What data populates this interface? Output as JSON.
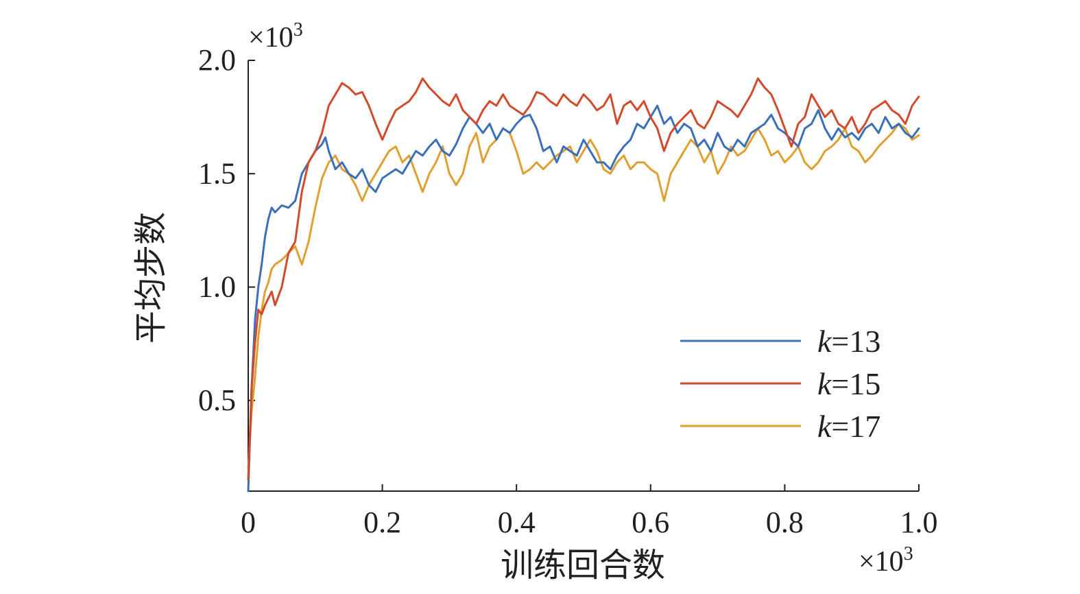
{
  "chart_data": {
    "type": "line",
    "xlabel": "训练回合数",
    "ylabel": "平均步数",
    "x_multiplier": "×10",
    "x_multiplier_exp": "3",
    "y_multiplier": "×10",
    "y_multiplier_exp": "3",
    "xlim": [
      0,
      1.0
    ],
    "ylim": [
      0.1,
      2.0
    ],
    "x_ticks": [
      0,
      0.2,
      0.4,
      0.6,
      0.8,
      1.0
    ],
    "x_tick_labels": [
      "0",
      "0.2",
      "0.4",
      "0.6",
      "0.8",
      "1.0"
    ],
    "y_ticks": [
      0.5,
      1.0,
      1.5,
      2.0
    ],
    "y_tick_labels": [
      "0.5",
      "1.0",
      "1.5",
      "2.0"
    ],
    "legend_position": "bottom-right",
    "series": [
      {
        "name_italic": "k",
        "name_rest": "=13",
        "color": "#3a6fba",
        "x": [
          0,
          0.005,
          0.01,
          0.015,
          0.02,
          0.025,
          0.03,
          0.035,
          0.04,
          0.05,
          0.06,
          0.07,
          0.08,
          0.09,
          0.1,
          0.11,
          0.115,
          0.12,
          0.13,
          0.14,
          0.15,
          0.16,
          0.17,
          0.18,
          0.19,
          0.2,
          0.21,
          0.22,
          0.23,
          0.24,
          0.25,
          0.26,
          0.27,
          0.28,
          0.29,
          0.3,
          0.31,
          0.32,
          0.33,
          0.34,
          0.35,
          0.36,
          0.37,
          0.38,
          0.39,
          0.4,
          0.41,
          0.42,
          0.43,
          0.44,
          0.45,
          0.46,
          0.47,
          0.48,
          0.49,
          0.5,
          0.51,
          0.52,
          0.53,
          0.54,
          0.55,
          0.56,
          0.57,
          0.58,
          0.59,
          0.6,
          0.61,
          0.62,
          0.63,
          0.64,
          0.65,
          0.66,
          0.67,
          0.68,
          0.69,
          0.7,
          0.71,
          0.72,
          0.73,
          0.74,
          0.75,
          0.76,
          0.77,
          0.78,
          0.79,
          0.8,
          0.81,
          0.82,
          0.83,
          0.84,
          0.85,
          0.86,
          0.87,
          0.88,
          0.89,
          0.9,
          0.91,
          0.92,
          0.93,
          0.94,
          0.95,
          0.96,
          0.97,
          0.98,
          0.99,
          1.0
        ],
        "y": [
          0.1,
          0.55,
          0.85,
          1.0,
          1.1,
          1.22,
          1.3,
          1.35,
          1.33,
          1.36,
          1.35,
          1.38,
          1.5,
          1.55,
          1.6,
          1.63,
          1.66,
          1.6,
          1.52,
          1.55,
          1.5,
          1.48,
          1.52,
          1.45,
          1.42,
          1.48,
          1.5,
          1.52,
          1.5,
          1.55,
          1.6,
          1.58,
          1.62,
          1.65,
          1.6,
          1.58,
          1.63,
          1.7,
          1.75,
          1.72,
          1.68,
          1.72,
          1.65,
          1.7,
          1.68,
          1.72,
          1.75,
          1.76,
          1.7,
          1.6,
          1.62,
          1.55,
          1.62,
          1.6,
          1.58,
          1.65,
          1.6,
          1.55,
          1.55,
          1.52,
          1.58,
          1.62,
          1.65,
          1.72,
          1.7,
          1.75,
          1.8,
          1.72,
          1.75,
          1.68,
          1.72,
          1.7,
          1.62,
          1.65,
          1.6,
          1.68,
          1.62,
          1.6,
          1.65,
          1.62,
          1.68,
          1.7,
          1.72,
          1.76,
          1.7,
          1.68,
          1.65,
          1.62,
          1.7,
          1.72,
          1.78,
          1.7,
          1.65,
          1.7,
          1.66,
          1.68,
          1.65,
          1.7,
          1.72,
          1.68,
          1.75,
          1.7,
          1.72,
          1.68,
          1.66,
          1.7
        ]
      },
      {
        "name_italic": "k",
        "name_rest": "=15",
        "color": "#d24a2a",
        "x": [
          0,
          0.005,
          0.01,
          0.015,
          0.02,
          0.025,
          0.03,
          0.035,
          0.04,
          0.05,
          0.06,
          0.07,
          0.08,
          0.09,
          0.1,
          0.11,
          0.12,
          0.13,
          0.14,
          0.15,
          0.16,
          0.17,
          0.18,
          0.19,
          0.2,
          0.21,
          0.22,
          0.23,
          0.24,
          0.25,
          0.26,
          0.27,
          0.28,
          0.29,
          0.3,
          0.31,
          0.32,
          0.33,
          0.34,
          0.35,
          0.36,
          0.37,
          0.38,
          0.39,
          0.4,
          0.41,
          0.42,
          0.43,
          0.44,
          0.45,
          0.46,
          0.47,
          0.48,
          0.49,
          0.5,
          0.51,
          0.52,
          0.53,
          0.54,
          0.55,
          0.56,
          0.57,
          0.58,
          0.59,
          0.6,
          0.61,
          0.62,
          0.63,
          0.64,
          0.65,
          0.66,
          0.67,
          0.68,
          0.69,
          0.7,
          0.71,
          0.72,
          0.73,
          0.74,
          0.75,
          0.76,
          0.77,
          0.78,
          0.79,
          0.8,
          0.81,
          0.82,
          0.83,
          0.84,
          0.85,
          0.86,
          0.87,
          0.88,
          0.89,
          0.9,
          0.91,
          0.92,
          0.93,
          0.94,
          0.95,
          0.96,
          0.97,
          0.98,
          0.99,
          1.0
        ],
        "y": [
          0.15,
          0.55,
          0.75,
          0.9,
          0.88,
          0.92,
          0.95,
          0.98,
          0.92,
          1.0,
          1.15,
          1.2,
          1.42,
          1.55,
          1.6,
          1.68,
          1.8,
          1.85,
          1.9,
          1.88,
          1.85,
          1.86,
          1.8,
          1.72,
          1.65,
          1.72,
          1.78,
          1.8,
          1.82,
          1.86,
          1.92,
          1.88,
          1.85,
          1.82,
          1.8,
          1.85,
          1.78,
          1.75,
          1.72,
          1.78,
          1.82,
          1.8,
          1.85,
          1.8,
          1.78,
          1.76,
          1.8,
          1.86,
          1.85,
          1.82,
          1.8,
          1.85,
          1.82,
          1.8,
          1.85,
          1.82,
          1.78,
          1.8,
          1.85,
          1.72,
          1.8,
          1.82,
          1.78,
          1.82,
          1.75,
          1.7,
          1.6,
          1.68,
          1.72,
          1.75,
          1.78,
          1.72,
          1.7,
          1.75,
          1.82,
          1.8,
          1.78,
          1.75,
          1.8,
          1.85,
          1.92,
          1.88,
          1.85,
          1.78,
          1.7,
          1.62,
          1.72,
          1.75,
          1.85,
          1.8,
          1.75,
          1.78,
          1.72,
          1.7,
          1.75,
          1.68,
          1.72,
          1.78,
          1.8,
          1.82,
          1.78,
          1.76,
          1.72,
          1.8,
          1.84
        ]
      },
      {
        "name_italic": "k",
        "name_rest": "=17",
        "color": "#e0a030",
        "x": [
          0,
          0.005,
          0.01,
          0.015,
          0.02,
          0.025,
          0.03,
          0.035,
          0.04,
          0.05,
          0.06,
          0.07,
          0.08,
          0.09,
          0.1,
          0.11,
          0.12,
          0.13,
          0.14,
          0.15,
          0.16,
          0.17,
          0.18,
          0.19,
          0.2,
          0.21,
          0.22,
          0.23,
          0.24,
          0.25,
          0.26,
          0.27,
          0.28,
          0.29,
          0.3,
          0.31,
          0.32,
          0.33,
          0.34,
          0.35,
          0.36,
          0.37,
          0.38,
          0.39,
          0.4,
          0.41,
          0.42,
          0.43,
          0.44,
          0.45,
          0.46,
          0.47,
          0.48,
          0.49,
          0.5,
          0.51,
          0.52,
          0.53,
          0.54,
          0.55,
          0.56,
          0.57,
          0.58,
          0.59,
          0.6,
          0.61,
          0.62,
          0.63,
          0.64,
          0.65,
          0.66,
          0.67,
          0.68,
          0.69,
          0.7,
          0.71,
          0.72,
          0.73,
          0.74,
          0.75,
          0.76,
          0.77,
          0.78,
          0.79,
          0.8,
          0.81,
          0.82,
          0.83,
          0.84,
          0.85,
          0.86,
          0.87,
          0.88,
          0.89,
          0.9,
          0.91,
          0.92,
          0.93,
          0.94,
          0.95,
          0.96,
          0.97,
          0.98,
          0.99,
          1.0
        ],
        "y": [
          0.2,
          0.45,
          0.6,
          0.78,
          0.9,
          0.98,
          1.02,
          1.08,
          1.1,
          1.12,
          1.15,
          1.18,
          1.1,
          1.2,
          1.35,
          1.48,
          1.55,
          1.58,
          1.52,
          1.5,
          1.45,
          1.38,
          1.45,
          1.5,
          1.55,
          1.6,
          1.62,
          1.55,
          1.58,
          1.5,
          1.42,
          1.5,
          1.55,
          1.62,
          1.5,
          1.45,
          1.5,
          1.62,
          1.68,
          1.55,
          1.62,
          1.65,
          1.7,
          1.68,
          1.6,
          1.5,
          1.52,
          1.55,
          1.52,
          1.55,
          1.58,
          1.6,
          1.62,
          1.55,
          1.6,
          1.65,
          1.6,
          1.52,
          1.5,
          1.55,
          1.58,
          1.52,
          1.55,
          1.55,
          1.52,
          1.5,
          1.38,
          1.5,
          1.55,
          1.6,
          1.65,
          1.62,
          1.55,
          1.6,
          1.5,
          1.55,
          1.62,
          1.58,
          1.6,
          1.65,
          1.7,
          1.65,
          1.58,
          1.6,
          1.55,
          1.58,
          1.62,
          1.55,
          1.52,
          1.55,
          1.6,
          1.62,
          1.65,
          1.7,
          1.62,
          1.6,
          1.55,
          1.58,
          1.62,
          1.65,
          1.68,
          1.72,
          1.7,
          1.65,
          1.67
        ]
      }
    ]
  }
}
